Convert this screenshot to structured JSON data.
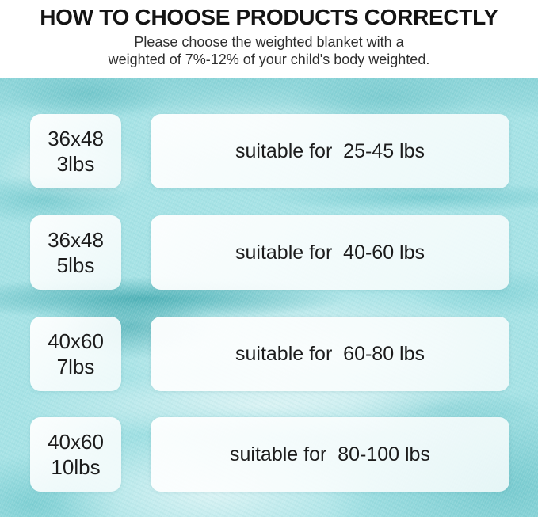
{
  "header": {
    "title": "HOW TO CHOOSE PRODUCTS CORRECTLY",
    "subtitle_line1": "Please choose the weighted blanket with a",
    "subtitle_line2": "weighted of 7%-12% of your child's body weighted."
  },
  "rows": [
    {
      "size": "36x48",
      "weight": "3lbs",
      "suitable_label": "suitable for  25-45 lbs"
    },
    {
      "size": "36x48",
      "weight": "5lbs",
      "suitable_label": "suitable for  40-60 lbs"
    },
    {
      "size": "40x60",
      "weight": "7lbs",
      "suitable_label": "suitable for  60-80 lbs"
    },
    {
      "size": "40x60",
      "weight": "10lbs",
      "suitable_label": "suitable for  80-100 lbs"
    }
  ],
  "chart_data": {
    "type": "table",
    "title": "HOW TO CHOOSE PRODUCTS CORRECTLY",
    "subtitle": "Please choose the weighted blanket with a weighted of 7%-12% of your child's body weighted.",
    "rows": [
      {
        "size_inches": "36x48",
        "blanket_weight": "3lbs",
        "suitable_body_weight_lbs": "25-45"
      },
      {
        "size_inches": "36x48",
        "blanket_weight": "5lbs",
        "suitable_body_weight_lbs": "40-60"
      },
      {
        "size_inches": "40x60",
        "blanket_weight": "7lbs",
        "suitable_body_weight_lbs": "60-80"
      },
      {
        "size_inches": "40x60",
        "blanket_weight": "10lbs",
        "suitable_body_weight_lbs": "80-100"
      }
    ]
  },
  "colors": {
    "header_background": "#ffffff",
    "title_text": "#141414",
    "subtitle_text": "#2f2f2f",
    "fabric_base": "#a7e3e6",
    "fabric_fold_dark": "#55bcc1",
    "fabric_highlight": "#eefafa",
    "card_background": "#fdfefe",
    "card_text": "#1c1c1c"
  }
}
